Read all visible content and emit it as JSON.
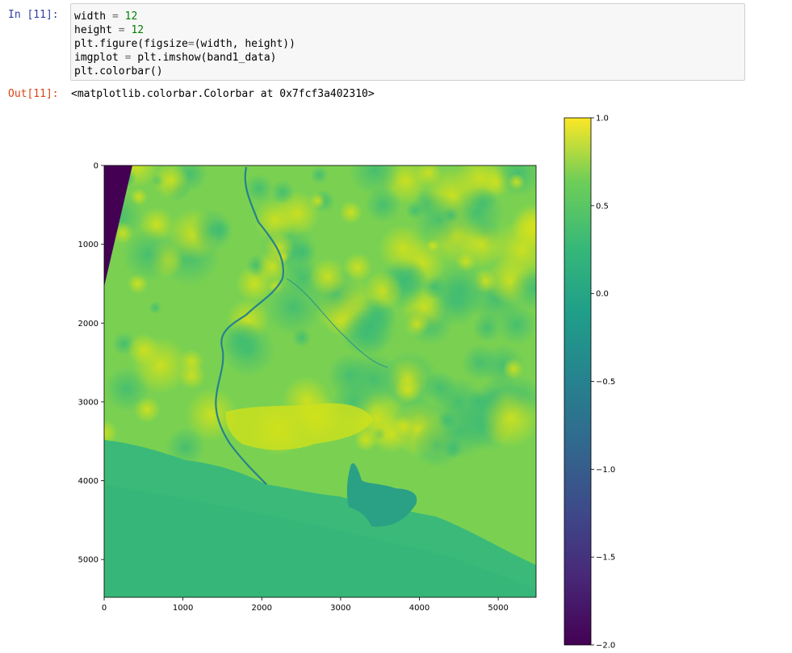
{
  "cell_in": {
    "prompt": "In [11]:",
    "lines": [
      {
        "pre": "width ",
        "op": "=",
        "post": " ",
        "num": "12",
        "tail": ""
      },
      {
        "pre": "height ",
        "op": "=",
        "post": " ",
        "num": "12",
        "tail": ""
      },
      {
        "pre": "plt.figure(figsize",
        "op": "=",
        "post": "(width, height))",
        "num": "",
        "tail": ""
      },
      {
        "pre": "imgplot ",
        "op": "=",
        "post": " plt.imshow(band1_data)",
        "num": "",
        "tail": ""
      },
      {
        "pre": "plt.colorbar()",
        "op": "",
        "post": "",
        "num": "",
        "tail": ""
      }
    ]
  },
  "cell_out": {
    "prompt": "Out[11]:",
    "text": "<matplotlib.colorbar.Colorbar at 0x7fcf3a402310>"
  },
  "chart_data": [
    {
      "type": "heatmap",
      "colormap": "viridis",
      "x_ticks": [
        0,
        1000,
        2000,
        3000,
        4000,
        5000
      ],
      "y_ticks": [
        0,
        1000,
        2000,
        3000,
        4000,
        5000
      ],
      "x_range": [
        0,
        5480
      ],
      "y_range": [
        0,
        5480
      ],
      "y_inverted": true
    },
    {
      "type": "colorbar",
      "colormap": "viridis",
      "range": [
        -2.0,
        1.0
      ],
      "ticks": [
        1.0,
        0.5,
        0.0,
        -0.5,
        -1.0,
        -1.5,
        -2.0
      ],
      "tick_labels": [
        "1.0",
        "0.5",
        "0.0",
        "−0.5",
        "−1.0",
        "−1.5",
        "−2.0"
      ]
    }
  ],
  "colors": {
    "viridis_top": "#fde725",
    "viridis_green": "#5ec962",
    "viridis_teal": "#21918c",
    "viridis_blue": "#3b528b",
    "viridis_bottom": "#440154"
  }
}
